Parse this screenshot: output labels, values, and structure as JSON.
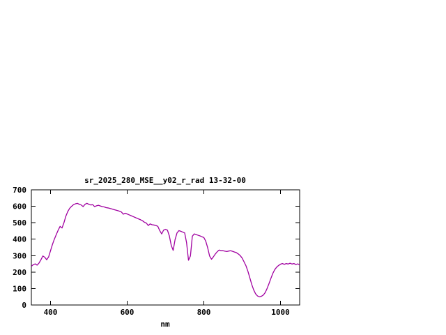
{
  "page": {
    "background": "#ffffff"
  },
  "chart_data": {
    "type": "line",
    "title": "sr_2025_280_MSE__y02_r_rad 13-32-00",
    "xlabel": "nm",
    "ylabel": "",
    "xlim": [
      350,
      1050
    ],
    "ylim": [
      0,
      700
    ],
    "xticks": [
      400,
      600,
      800,
      1000
    ],
    "yticks": [
      0,
      100,
      200,
      300,
      400,
      500,
      600,
      700
    ],
    "grid": false,
    "legend_position": "none",
    "line_color": "#a000a0",
    "axis_color": "#000000",
    "series": [
      {
        "name": "sr_2025_280_MSE__y02_r_rad",
        "x": [
          350,
          355,
          360,
          365,
          370,
          375,
          380,
          385,
          390,
          395,
          400,
          405,
          410,
          415,
          420,
          425,
          430,
          435,
          440,
          445,
          450,
          455,
          460,
          465,
          470,
          475,
          480,
          485,
          490,
          495,
          500,
          505,
          510,
          515,
          520,
          525,
          530,
          535,
          540,
          545,
          550,
          555,
          560,
          565,
          570,
          575,
          580,
          585,
          590,
          595,
          600,
          605,
          610,
          615,
          620,
          625,
          630,
          635,
          640,
          645,
          650,
          655,
          660,
          665,
          670,
          675,
          680,
          685,
          690,
          695,
          700,
          705,
          710,
          715,
          720,
          725,
          730,
          735,
          740,
          745,
          750,
          755,
          760,
          765,
          770,
          775,
          780,
          785,
          790,
          795,
          800,
          805,
          810,
          815,
          820,
          825,
          830,
          835,
          840,
          845,
          850,
          855,
          860,
          865,
          870,
          875,
          880,
          885,
          890,
          895,
          900,
          905,
          910,
          915,
          920,
          925,
          930,
          935,
          940,
          945,
          950,
          955,
          960,
          965,
          970,
          975,
          980,
          985,
          990,
          995,
          1000,
          1005,
          1010,
          1015,
          1020,
          1025,
          1030,
          1035,
          1040,
          1045,
          1050
        ],
        "y": [
          235,
          245,
          250,
          242,
          255,
          275,
          298,
          290,
          275,
          292,
          330,
          368,
          400,
          428,
          455,
          478,
          468,
          500,
          540,
          568,
          588,
          600,
          610,
          615,
          618,
          612,
          608,
          598,
          612,
          618,
          612,
          608,
          610,
          598,
          603,
          606,
          602,
          598,
          596,
          592,
          590,
          587,
          584,
          580,
          577,
          574,
          570,
          565,
          552,
          558,
          553,
          548,
          543,
          538,
          533,
          528,
          523,
          518,
          512,
          503,
          498,
          483,
          493,
          488,
          486,
          483,
          478,
          452,
          432,
          455,
          460,
          455,
          420,
          362,
          332,
          398,
          438,
          452,
          448,
          443,
          438,
          378,
          272,
          298,
          418,
          432,
          428,
          424,
          420,
          415,
          410,
          388,
          348,
          298,
          278,
          293,
          310,
          324,
          334,
          330,
          330,
          327,
          325,
          328,
          330,
          326,
          322,
          318,
          310,
          300,
          285,
          262,
          238,
          205,
          165,
          125,
          92,
          68,
          55,
          50,
          53,
          60,
          75,
          100,
          130,
          162,
          192,
          215,
          230,
          240,
          248,
          252,
          247,
          252,
          249,
          254,
          249,
          252,
          246,
          250,
          244
        ]
      }
    ]
  }
}
